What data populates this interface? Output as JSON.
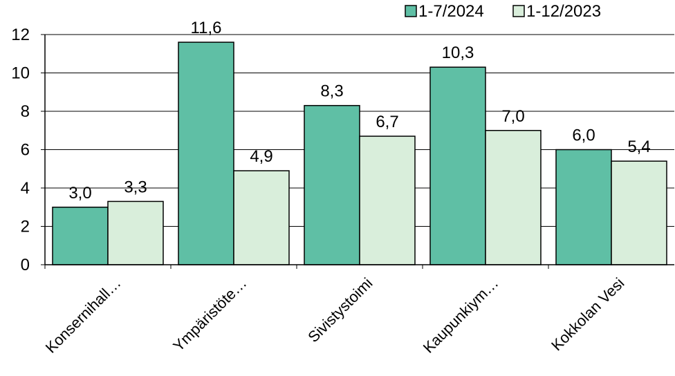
{
  "chart_data": {
    "type": "bar",
    "categories": [
      "Konsernihall…",
      "Ympäristöte…",
      "Sivistystoimi",
      "Kaupunkiym…",
      "Kokkolan Vesi"
    ],
    "series": [
      {
        "name": "1-7/2024",
        "values": [
          3.0,
          11.6,
          8.3,
          10.3,
          6.0
        ],
        "labels": [
          "3,0",
          "11,6",
          "8,3",
          "10,3",
          "6,0"
        ],
        "color": "#5fbfa5"
      },
      {
        "name": "1-12/2023",
        "values": [
          3.3,
          4.9,
          6.7,
          7.0,
          5.4
        ],
        "labels": [
          "3,3",
          "4,9",
          "6,7",
          "7,0",
          "5,4"
        ],
        "color": "#d9eedb"
      }
    ],
    "ylim": [
      0,
      12
    ],
    "yticks": [
      0,
      2,
      4,
      6,
      8,
      10,
      12
    ],
    "grid": true,
    "legend_position": "top-right"
  }
}
